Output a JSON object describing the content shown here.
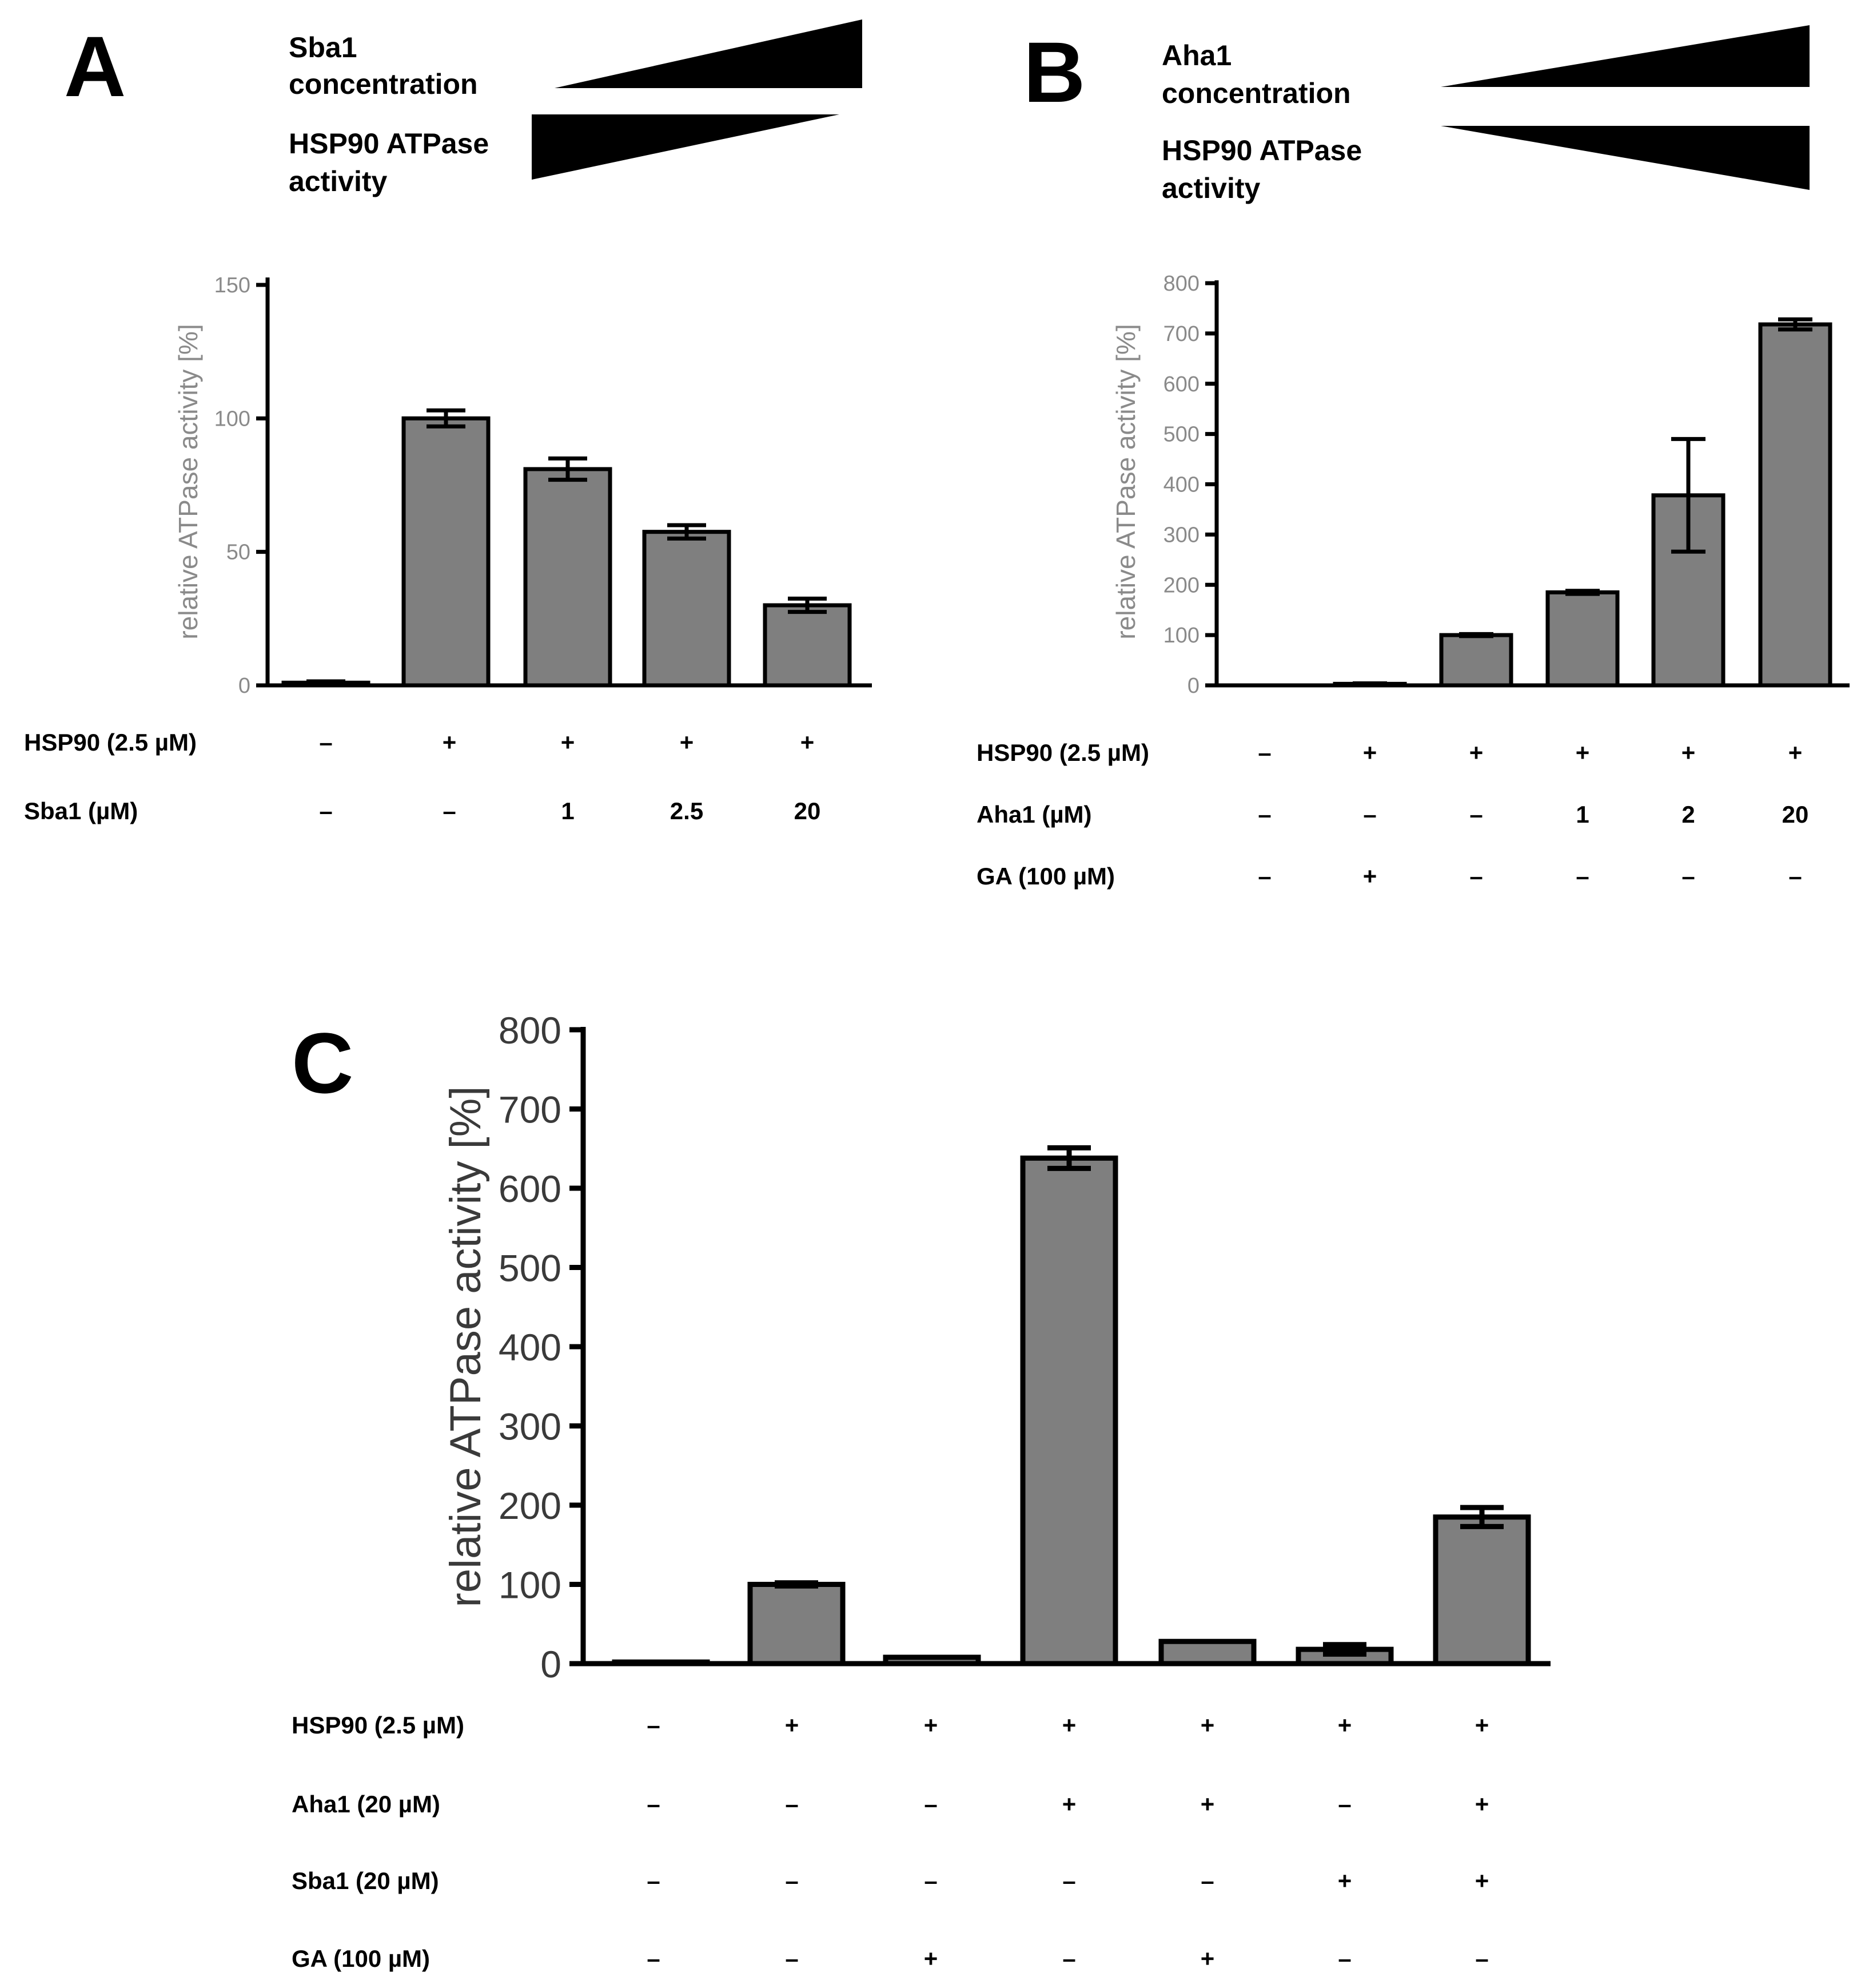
{
  "figure": {
    "bar_fill": "#7f7f7f",
    "bar_stroke": "#000000"
  },
  "chart_data": [
    {
      "id": "A",
      "panel_label": "A",
      "type": "bar",
      "ylabel": "relative ATPase activity [%]",
      "ylim": [
        0,
        150
      ],
      "yticks": [
        0,
        50,
        100,
        150
      ],
      "values": [
        1,
        100,
        81,
        57.5,
        30
      ],
      "errors": [
        0.5,
        3,
        4,
        2.5,
        2.5
      ],
      "legend": {
        "top_label": [
          "Sba1",
          "concentration"
        ],
        "top_direction": "increasing",
        "bottom_label": [
          "HSP90 ATPase",
          "activity"
        ],
        "bottom_direction": "decreasing"
      },
      "conditions": [
        {
          "label": "HSP90 (2.5 µM)",
          "values": [
            "–",
            "+",
            "+",
            "+",
            "+"
          ]
        },
        {
          "label": "Sba1 (µM)",
          "values": [
            "–",
            "–",
            "1",
            "2.5",
            "20"
          ]
        }
      ]
    },
    {
      "id": "B",
      "panel_label": "B",
      "type": "bar",
      "ylabel": "relative ATPase activity [%]",
      "ylim": [
        0,
        800
      ],
      "yticks": [
        0,
        100,
        200,
        300,
        400,
        500,
        600,
        700,
        800
      ],
      "values": [
        0,
        3,
        100,
        185,
        378,
        718
      ],
      "errors": [
        0,
        1,
        2,
        3,
        112,
        10
      ],
      "legend": {
        "top_label": [
          "Aha1",
          "concentration"
        ],
        "top_direction": "increasing",
        "bottom_label": [
          "HSP90 ATPase",
          "activity"
        ],
        "bottom_direction": "increasing"
      },
      "conditions": [
        {
          "label": "HSP90 (2.5 µM)",
          "values": [
            "–",
            "+",
            "+",
            "+",
            "+",
            "+"
          ]
        },
        {
          "label": "Aha1 (µM)",
          "values": [
            "–",
            "–",
            "–",
            "1",
            "2",
            "20"
          ]
        },
        {
          "label": "GA (100 µM)",
          "values": [
            "–",
            "+",
            "–",
            "–",
            "–",
            "–"
          ]
        }
      ]
    },
    {
      "id": "C",
      "panel_label": "C",
      "type": "bar",
      "ylabel": "relative ATPase activity [%]",
      "ylim": [
        0,
        800
      ],
      "yticks": [
        0,
        100,
        200,
        300,
        400,
        500,
        600,
        700,
        800
      ],
      "values": [
        2,
        100,
        8,
        638,
        28,
        18,
        185
      ],
      "errors": [
        0,
        2,
        0,
        13,
        0,
        6,
        12
      ],
      "conditions": [
        {
          "label": "HSP90 (2.5 µM)",
          "values": [
            "–",
            "+",
            "+",
            "+",
            "+",
            "+",
            "+"
          ]
        },
        {
          "label": "Aha1 (20 µM)",
          "values": [
            "–",
            "–",
            "–",
            "+",
            "+",
            "–",
            "+"
          ]
        },
        {
          "label": "Sba1 (20 µM)",
          "values": [
            "–",
            "–",
            "–",
            "–",
            "–",
            "+",
            "+"
          ]
        },
        {
          "label": "GA (100 µM)",
          "values": [
            "–",
            "–",
            "+",
            "–",
            "+",
            "–",
            "–"
          ]
        }
      ]
    }
  ]
}
